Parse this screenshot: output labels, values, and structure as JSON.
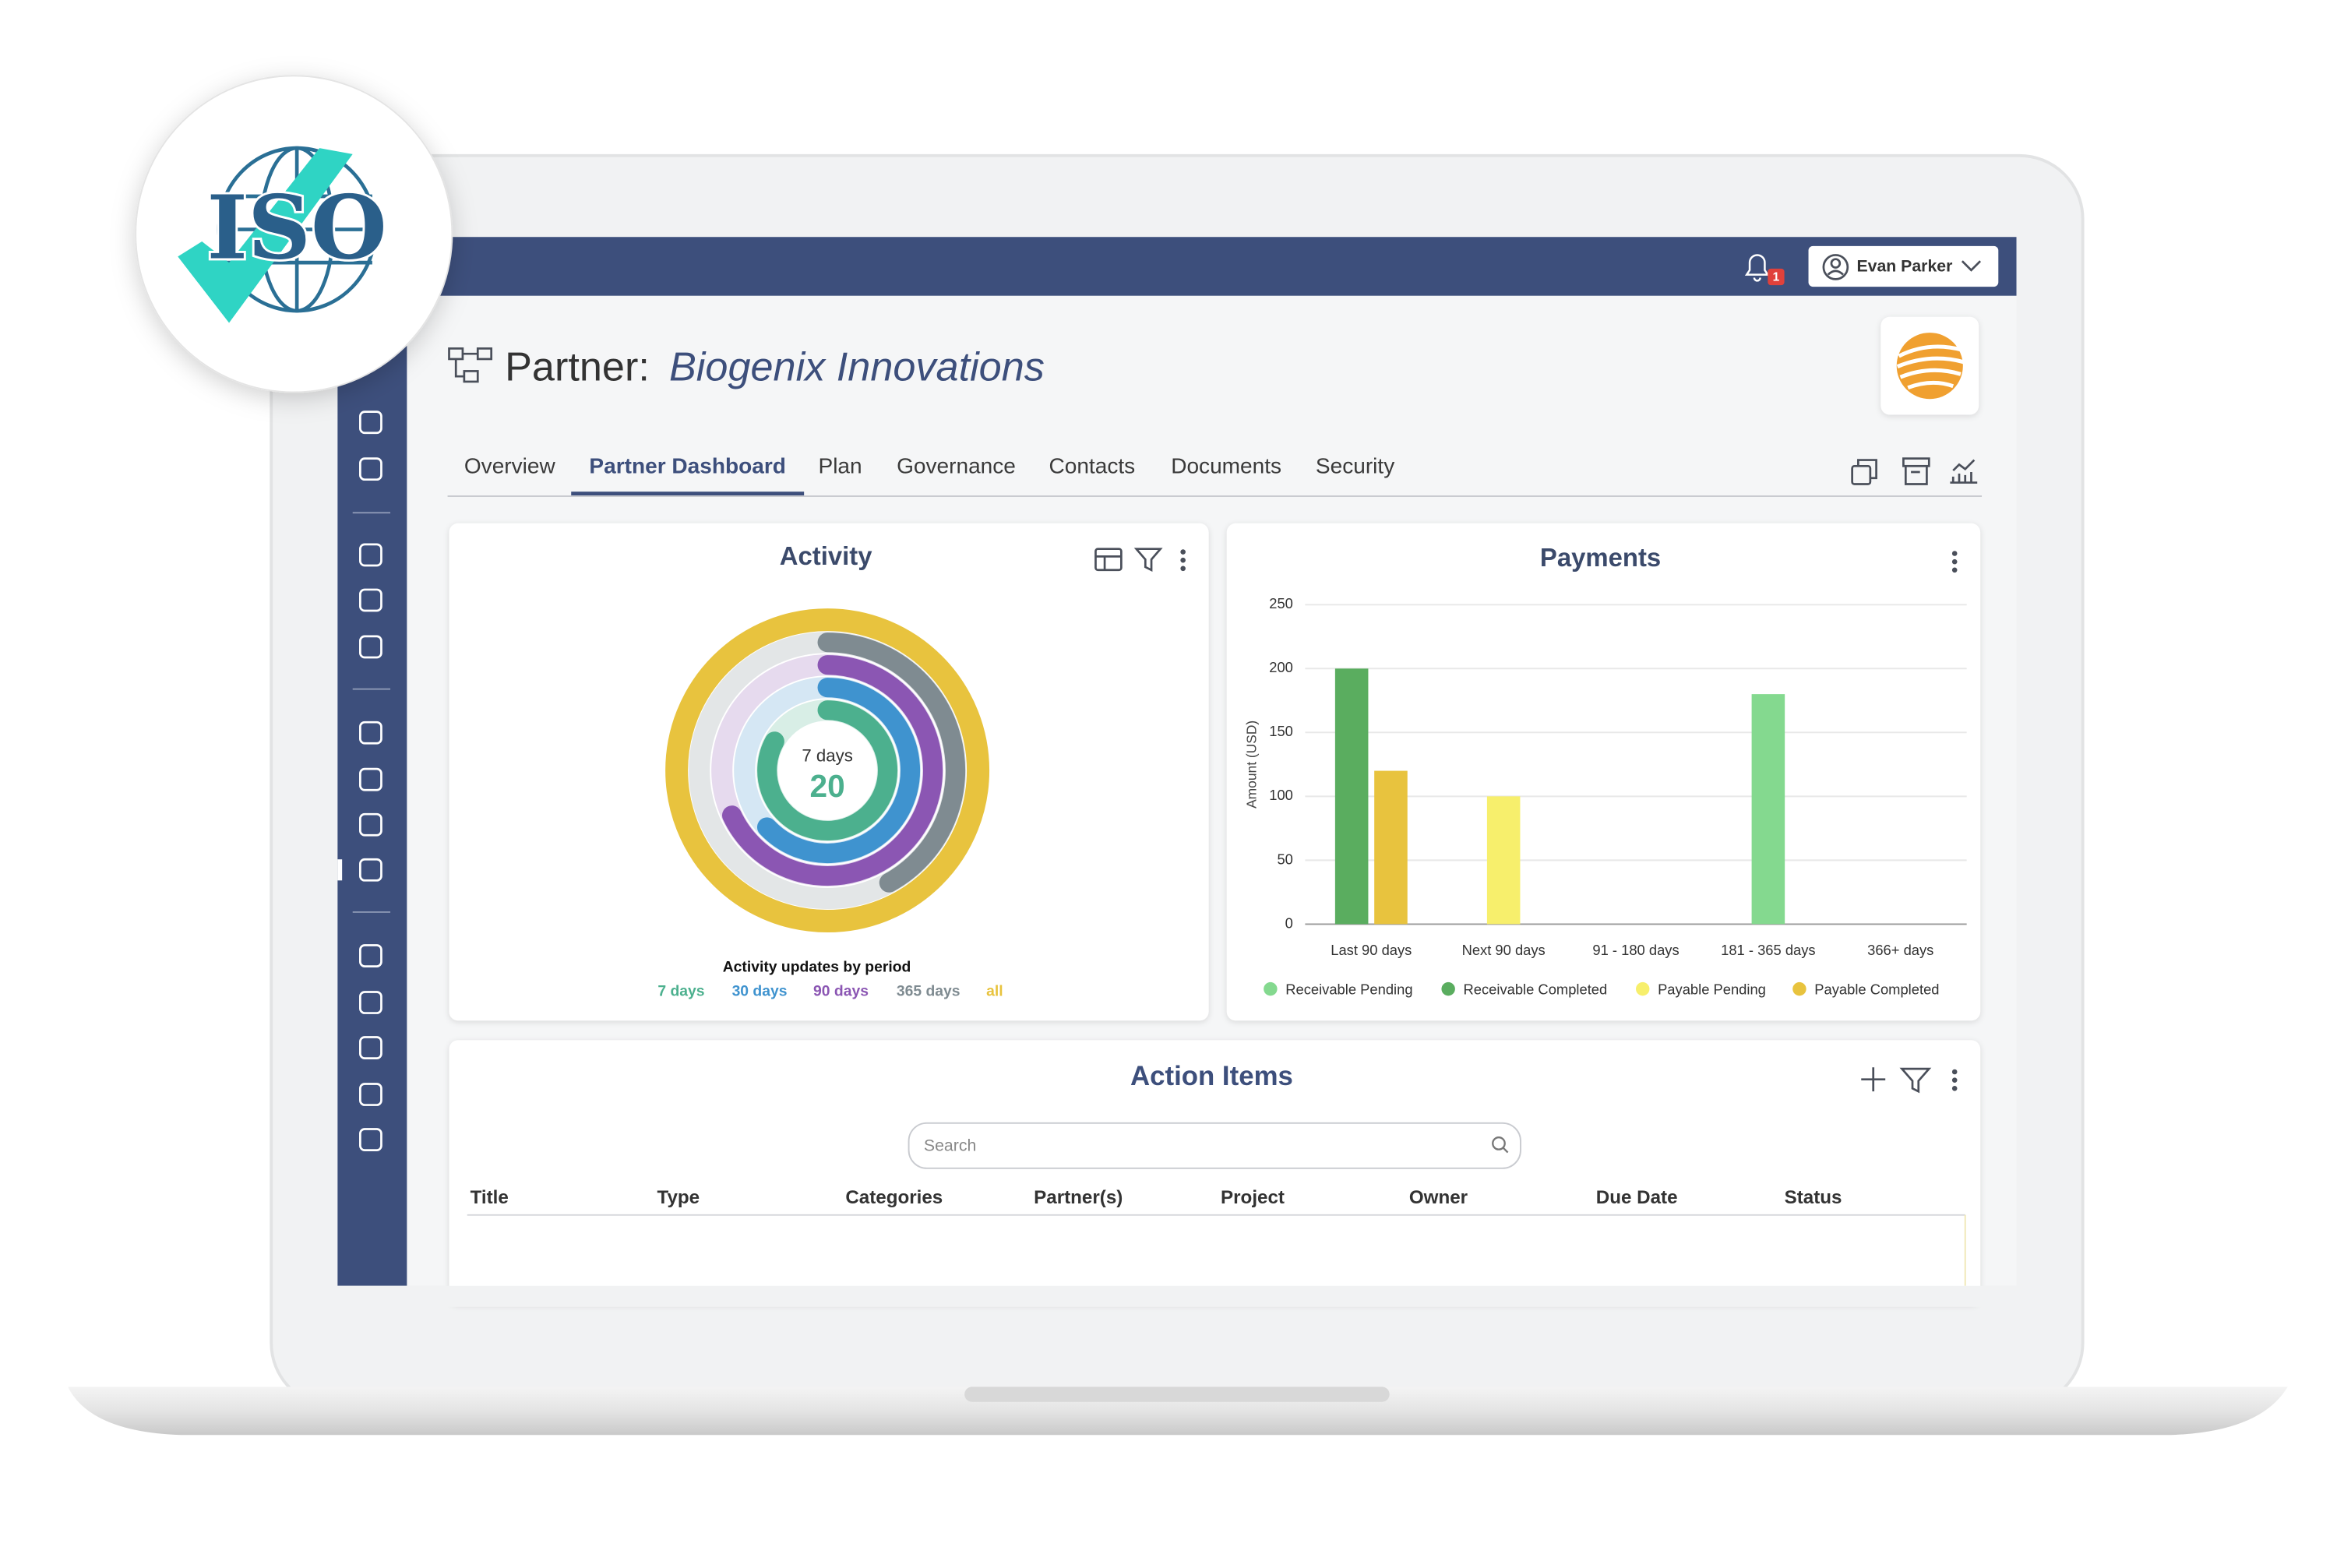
{
  "logo": {
    "text": "ISO"
  },
  "header": {
    "notifications": 1,
    "user": "Evan Parker",
    "title_prefix": "Partner:",
    "title_name": "Biogenix Innovations"
  },
  "tabs": [
    {
      "label": "Overview",
      "active": false
    },
    {
      "label": "Partner Dashboard",
      "active": true
    },
    {
      "label": "Plan",
      "active": false
    },
    {
      "label": "Governance",
      "active": false
    },
    {
      "label": "Contacts",
      "active": false
    },
    {
      "label": "Documents",
      "active": false
    },
    {
      "label": "Security",
      "active": false
    }
  ],
  "chart_data": [
    {
      "type": "radial_bar",
      "title": "Activity",
      "subtitle": "Activity updates by period",
      "center_label": "7 days",
      "center_value": 20,
      "categories": [
        "7 days",
        "30 days",
        "90 days",
        "365 days",
        "all"
      ],
      "colors": [
        "#4cb08e",
        "#3f93cf",
        "#8b56b3",
        "#7f8b91",
        "#e8c33e"
      ],
      "values": [
        83,
        63,
        68,
        42,
        100
      ]
    },
    {
      "type": "bar",
      "title": "Payments",
      "y_label": "Amount (USD)",
      "categories": [
        "Last 90 days",
        "Next 90 days",
        "91 - 180 days",
        "181 - 365 days",
        "366+ days"
      ],
      "ylim": [
        0,
        250
      ],
      "yticks": [
        0,
        50,
        100,
        150,
        200,
        250
      ],
      "grid": true,
      "legend": "bottom",
      "series": [
        {
          "name": "Receivable Pending",
          "color": "#84d98f",
          "values": [
            null,
            null,
            null,
            180,
            null
          ]
        },
        {
          "name": "Receivable Completed",
          "color": "#5aad5f",
          "values": [
            200,
            null,
            null,
            null,
            null
          ]
        },
        {
          "name": "Payable Pending",
          "color": "#f7ef6c",
          "values": [
            null,
            100,
            null,
            null,
            null
          ]
        },
        {
          "name": "Payable Completed",
          "color": "#e8c33e",
          "values": [
            120,
            null,
            null,
            null,
            null
          ]
        }
      ]
    }
  ],
  "action_items": {
    "title": "Action Items",
    "search_placeholder": "Search",
    "columns": [
      "Title",
      "Type",
      "Categories",
      "Partner(s)",
      "Project",
      "Owner",
      "Due Date",
      "Status"
    ]
  }
}
